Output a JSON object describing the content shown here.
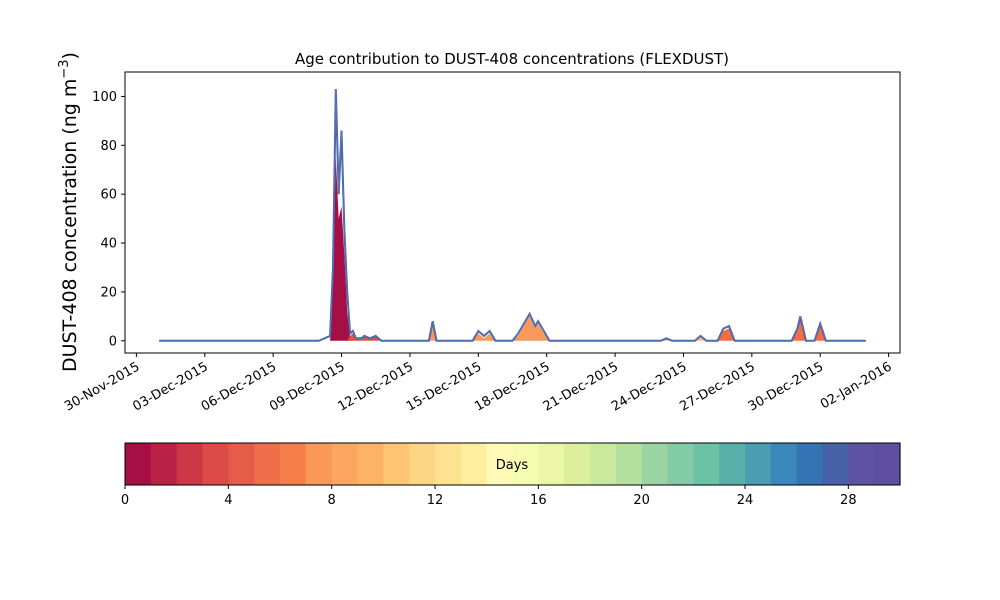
{
  "chart_data": {
    "type": "area",
    "title": "Age contribution to DUST-408 concentrations (FLEXDUST)",
    "ylabel_main": "DUST-408 concentration (ng m",
    "ylabel_exp": "−3",
    "ylabel_close": ")",
    "xlabel": "",
    "ylim": [
      -5,
      110
    ],
    "xlim": [
      "2015-11-29T12:00",
      "2016-01-02T12:00"
    ],
    "grid": false,
    "yticks": [
      0,
      20,
      40,
      60,
      80,
      100
    ],
    "xticks": [
      "30-Nov-2015",
      "03-Dec-2015",
      "06-Dec-2015",
      "09-Dec-2015",
      "12-Dec-2015",
      "15-Dec-2015",
      "18-Dec-2015",
      "21-Dec-2015",
      "24-Dec-2015",
      "27-Dec-2015",
      "30-Dec-2015",
      "02-Jan-2016"
    ],
    "xtick_dates": [
      "2015-11-30",
      "2015-12-03",
      "2015-12-06",
      "2015-12-09",
      "2015-12-12",
      "2015-12-15",
      "2015-12-18",
      "2015-12-21",
      "2015-12-24",
      "2015-12-27",
      "2015-12-30",
      "2016-01-02"
    ],
    "total_series": {
      "name": "",
      "points": [
        [
          "2015-12-01T00:00",
          0
        ],
        [
          "2015-12-08T00:00",
          0
        ],
        [
          "2015-12-08T12:00",
          2
        ],
        [
          "2015-12-08T15:00",
          30
        ],
        [
          "2015-12-08T18:00",
          103
        ],
        [
          "2015-12-08T21:00",
          60
        ],
        [
          "2015-12-09T00:00",
          86
        ],
        [
          "2015-12-09T03:00",
          45
        ],
        [
          "2015-12-09T06:00",
          20
        ],
        [
          "2015-12-09T09:00",
          3
        ],
        [
          "2015-12-09T12:00",
          4
        ],
        [
          "2015-12-09T15:00",
          1
        ],
        [
          "2015-12-09T21:00",
          1
        ],
        [
          "2015-12-10T00:00",
          2
        ],
        [
          "2015-12-10T06:00",
          1
        ],
        [
          "2015-12-10T12:00",
          2
        ],
        [
          "2015-12-10T18:00",
          0
        ],
        [
          "2015-12-12T20:00",
          0
        ],
        [
          "2015-12-13T00:00",
          8
        ],
        [
          "2015-12-13T04:00",
          0
        ],
        [
          "2015-12-14T18:00",
          0
        ],
        [
          "2015-12-15T00:00",
          4
        ],
        [
          "2015-12-15T06:00",
          2
        ],
        [
          "2015-12-15T12:00",
          4
        ],
        [
          "2015-12-15T18:00",
          0
        ],
        [
          "2015-12-16T12:00",
          0
        ],
        [
          "2015-12-16T18:00",
          3
        ],
        [
          "2015-12-17T00:00",
          7
        ],
        [
          "2015-12-17T06:00",
          11
        ],
        [
          "2015-12-17T12:00",
          6
        ],
        [
          "2015-12-17T15:00",
          8
        ],
        [
          "2015-12-17T21:00",
          4
        ],
        [
          "2015-12-18T03:00",
          0
        ],
        [
          "2015-12-23T00:00",
          0
        ],
        [
          "2015-12-23T06:00",
          1
        ],
        [
          "2015-12-23T12:00",
          0
        ],
        [
          "2015-12-24T12:00",
          0
        ],
        [
          "2015-12-24T18:00",
          2
        ],
        [
          "2015-12-25T00:00",
          0
        ],
        [
          "2015-12-25T12:00",
          0
        ],
        [
          "2015-12-25T18:00",
          5
        ],
        [
          "2015-12-26T00:00",
          6
        ],
        [
          "2015-12-26T06:00",
          0
        ],
        [
          "2015-12-28T18:00",
          0
        ],
        [
          "2015-12-29T00:00",
          5
        ],
        [
          "2015-12-29T03:00",
          10
        ],
        [
          "2015-12-29T09:00",
          0
        ],
        [
          "2015-12-29T18:00",
          0
        ],
        [
          "2015-12-30T00:00",
          7
        ],
        [
          "2015-12-30T06:00",
          0
        ],
        [
          "2016-01-01T00:00",
          0
        ]
      ]
    },
    "age_bands": [
      {
        "color": "#a50f45",
        "points": [
          [
            "2015-12-08T12:00",
            0
          ],
          [
            "2015-12-08T15:00",
            25
          ],
          [
            "2015-12-08T18:00",
            75
          ],
          [
            "2015-12-08T21:00",
            50
          ],
          [
            "2015-12-09T00:00",
            55
          ],
          [
            "2015-12-09T03:00",
            35
          ],
          [
            "2015-12-09T06:00",
            12
          ],
          [
            "2015-12-09T09:00",
            1
          ],
          [
            "2015-12-09T12:00",
            0
          ]
        ]
      },
      {
        "color": "#e0543f",
        "points": [
          [
            "2015-12-09T06:00",
            0
          ],
          [
            "2015-12-09T09:00",
            2
          ],
          [
            "2015-12-09T12:00",
            3
          ],
          [
            "2015-12-09T15:00",
            1
          ],
          [
            "2015-12-09T21:00",
            1
          ],
          [
            "2015-12-10T00:00",
            2
          ],
          [
            "2015-12-10T06:00",
            1
          ],
          [
            "2015-12-10T12:00",
            2
          ],
          [
            "2015-12-10T18:00",
            0
          ]
        ]
      },
      {
        "color": "#f99858",
        "points": [
          [
            "2015-12-12T20:00",
            0
          ],
          [
            "2015-12-13T00:00",
            7
          ],
          [
            "2015-12-13T04:00",
            0
          ],
          [
            "2015-12-14T18:00",
            0
          ],
          [
            "2015-12-15T00:00",
            3
          ],
          [
            "2015-12-15T06:00",
            1
          ],
          [
            "2015-12-15T12:00",
            3
          ],
          [
            "2015-12-15T18:00",
            0
          ],
          [
            "2015-12-16T12:00",
            0
          ],
          [
            "2015-12-16T18:00",
            2
          ],
          [
            "2015-12-17T00:00",
            6
          ],
          [
            "2015-12-17T06:00",
            10
          ],
          [
            "2015-12-17T12:00",
            5
          ],
          [
            "2015-12-17T15:00",
            7
          ],
          [
            "2015-12-17T21:00",
            3
          ],
          [
            "2015-12-18T03:00",
            0
          ]
        ]
      },
      {
        "color": "#f46d43",
        "points": [
          [
            "2015-12-25T12:00",
            0
          ],
          [
            "2015-12-25T18:00",
            4
          ],
          [
            "2015-12-26T00:00",
            5
          ],
          [
            "2015-12-26T06:00",
            0
          ],
          [
            "2015-12-28T18:00",
            0
          ],
          [
            "2015-12-29T00:00",
            4
          ],
          [
            "2015-12-29T03:00",
            9
          ],
          [
            "2015-12-29T09:00",
            0
          ],
          [
            "2015-12-29T18:00",
            0
          ],
          [
            "2015-12-30T00:00",
            6
          ],
          [
            "2015-12-30T06:00",
            0
          ]
        ]
      },
      {
        "color": "#fdbf6f",
        "points": [
          [
            "2015-12-23T00:00",
            0
          ],
          [
            "2015-12-23T06:00",
            1
          ],
          [
            "2015-12-23T12:00",
            0
          ],
          [
            "2015-12-24T12:00",
            0
          ],
          [
            "2015-12-24T18:00",
            1.5
          ],
          [
            "2015-12-25T00:00",
            0
          ]
        ]
      }
    ],
    "colorbar": {
      "label": "Days",
      "range": [
        0,
        30
      ],
      "ticks": [
        "0",
        "4",
        "8",
        "12",
        "16",
        "20",
        "24",
        "28"
      ],
      "tick_values": [
        0,
        4,
        8,
        12,
        16,
        20,
        24,
        28
      ],
      "colors": [
        "#a50f45",
        "#bb2045",
        "#cd3646",
        "#dd4a47",
        "#e55c4b",
        "#ed6e48",
        "#f67e4b",
        "#f99858",
        "#fba761",
        "#fdb365",
        "#fec574",
        "#fed585",
        "#fee290",
        "#feef9f",
        "#fffbb6",
        "#f6fbb2",
        "#ebf7a6",
        "#dcf09c",
        "#cbe99d",
        "#b6e09e",
        "#9bd5a4",
        "#82cba5",
        "#6cc2a5",
        "#58b0aa",
        "#4a9db3",
        "#3a88bc",
        "#3574b4",
        "#4761a9",
        "#5c53a4",
        "#5e4fa2"
      ]
    }
  }
}
